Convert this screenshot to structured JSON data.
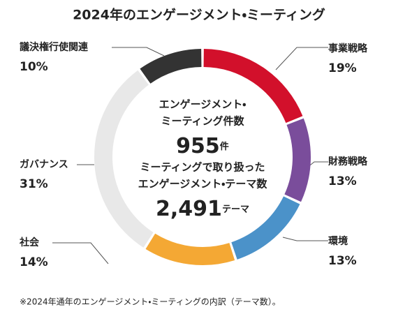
{
  "chart_data": {
    "type": "donut",
    "title": "2024年のエンゲージメント・ミーティング",
    "categories": [
      "事業戦略",
      "財務戦略",
      "環境",
      "社会",
      "ガバナンス",
      "議決権行使関連"
    ],
    "values": [
      19,
      13,
      13,
      14,
      31,
      10
    ],
    "value_labels": [
      "19%",
      "13%",
      "13%",
      "14%",
      "31%",
      "10%"
    ],
    "colors": [
      "#d2102b",
      "#7a4d9b",
      "#4b92c9",
      "#f4a834",
      "#e8e8e8",
      "#333333"
    ],
    "center": [
      {
        "lines": [
          "エンゲージメント・",
          "ミーティング件数"
        ],
        "number": "955",
        "unit": "件"
      },
      {
        "lines": [
          "ミーティングで取り扱った",
          "エンゲージメント・テーマ数"
        ],
        "number": "2,491",
        "unit": "テーマ"
      }
    ],
    "footnote": "※2024年通年のエンゲージメント・ミーティングの内訳（テーマ数）。"
  }
}
